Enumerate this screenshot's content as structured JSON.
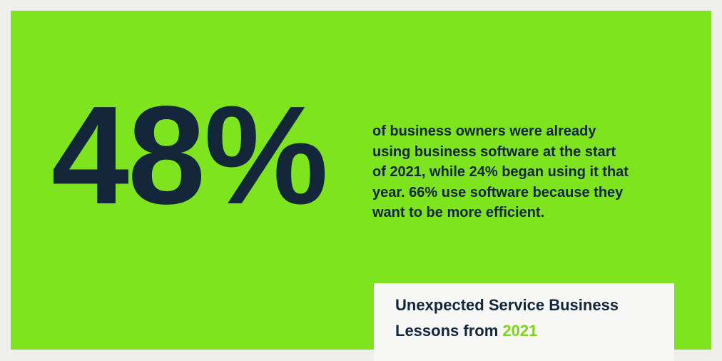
{
  "stat": {
    "value": "48%"
  },
  "description": {
    "lines": [
      "of business owners were already",
      "using business software at the start",
      "of 2021, while 24% began using it that",
      "year. 66% use software because they",
      "want to be more efficient."
    ]
  },
  "badge": {
    "line1": "Unexpected Service Business",
    "line2_prefix": "Lessons from",
    "line2_highlight": "2021"
  }
}
